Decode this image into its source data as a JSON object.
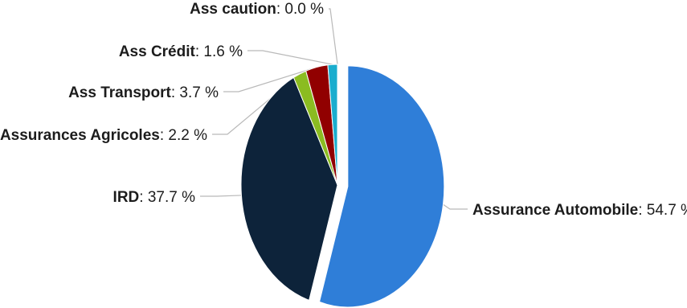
{
  "chart_data": {
    "type": "pie",
    "title": "",
    "slices": [
      {
        "name": "Assurance Automobile",
        "value": 54.7,
        "label": "54.7 %",
        "color": "#2f7ed8"
      },
      {
        "name": "IRD",
        "value": 37.7,
        "label": "37.7 %",
        "color": "#0d233a"
      },
      {
        "name": "Assurances Agricoles",
        "value": 2.2,
        "label": "2.2 %",
        "color": "#8bbc21"
      },
      {
        "name": "Ass Transport",
        "value": 3.7,
        "label": "3.7 %",
        "color": "#910000"
      },
      {
        "name": "Ass Crédit",
        "value": 1.6,
        "label": "1.6 %",
        "color": "#1aadce"
      },
      {
        "name": "Ass caution",
        "value": 0.0,
        "label": "0.0 %",
        "color": "#492970"
      }
    ],
    "separator": ": ",
    "legend": "none"
  }
}
